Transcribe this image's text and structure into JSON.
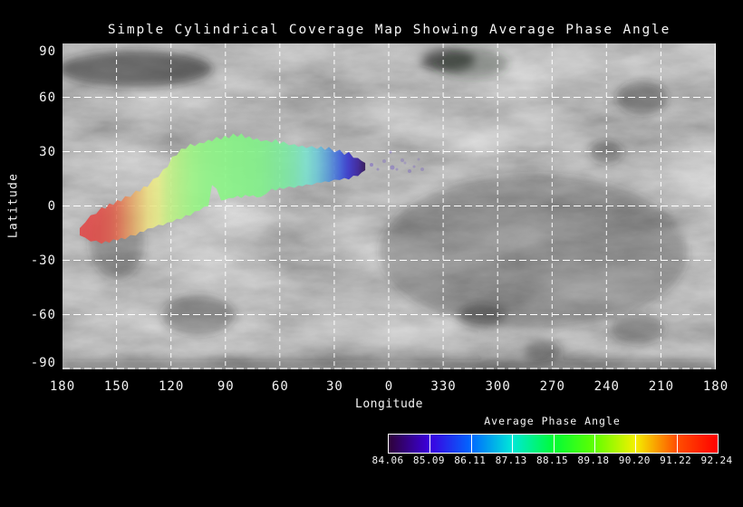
{
  "title": "Simple Cylindrical Coverage Map Showing Average Phase Angle",
  "axes": {
    "xlabel": "Longitude",
    "ylabel": "Latitude",
    "x_tick_labels": [
      "180",
      "150",
      "120",
      "90",
      "60",
      "30",
      "0",
      "330",
      "300",
      "270",
      "240",
      "210",
      "180"
    ],
    "y_tick_labels": [
      "90",
      "60",
      "30",
      "0",
      "-30",
      "-60",
      "-90"
    ]
  },
  "colorbar": {
    "title": "Average Phase Angle",
    "tick_labels": [
      "84.06",
      "85.09",
      "86.11",
      "87.13",
      "88.15",
      "89.18",
      "90.20",
      "91.22",
      "92.24"
    ],
    "boundary_colors": [
      "#2e0238",
      "#3c00e0",
      "#0068ff",
      "#00e8d8",
      "#00fc38",
      "#60ff00",
      "#f4f000",
      "#ff5000",
      "#ff0000"
    ]
  },
  "chart_data": {
    "type": "heatmap",
    "subtype": "map-coverage-swath",
    "title": "Simple Cylindrical Coverage Map Showing Average Phase Angle",
    "xlabel": "Longitude",
    "ylabel": "Latitude",
    "x_ticks": [
      180,
      150,
      120,
      90,
      60,
      30,
      0,
      330,
      300,
      270,
      240,
      210,
      180
    ],
    "x_axis_note": "longitude decreases left-to-right from 180 through 0 and wraps to 180",
    "ylim": [
      -90,
      90
    ],
    "grid": "white dashed lines every 30 degrees",
    "value_name": "Average Phase Angle",
    "value_range": [
      84.06,
      92.24
    ],
    "legend_position": "colorbar bottom-right",
    "background": "grayscale simple-cylindrical basemap",
    "swath_station_columns": [
      "lon",
      "lat_top",
      "lat_bot",
      "avg_phase_angle"
    ],
    "swath_stations": [
      [
        170.5,
        -12,
        -16,
        92.2
      ],
      [
        164.5,
        -6.5,
        -18,
        92.0
      ],
      [
        158.5,
        -2.5,
        -19.5,
        91.7
      ],
      [
        152.0,
        0.5,
        -18,
        91.3
      ],
      [
        145.5,
        3.5,
        -16.5,
        90.9
      ],
      [
        139.6,
        6.5,
        -14.5,
        90.6
      ],
      [
        133.1,
        10.5,
        -12,
        90.3
      ],
      [
        127.1,
        16,
        -10,
        90.1
      ],
      [
        122.1,
        21.5,
        -8.5,
        89.8
      ],
      [
        117.1,
        28,
        -6.5,
        89.6
      ],
      [
        112.1,
        31.5,
        -4.5,
        89.4
      ],
      [
        107.1,
        33,
        -2.5,
        89.2
      ],
      [
        102.1,
        34.5,
        0,
        89.0
      ],
      [
        99.6,
        35,
        1,
        88.9
      ],
      [
        97.6,
        35.5,
        12,
        88.85
      ],
      [
        95.1,
        36,
        10.5,
        88.8
      ],
      [
        92.6,
        36.5,
        3.5,
        88.75
      ],
      [
        90.6,
        37,
        4.5,
        88.7
      ],
      [
        83.6,
        38,
        6,
        88.5
      ],
      [
        77.1,
        37,
        7,
        88.3
      ],
      [
        70.7,
        35.5,
        5.5,
        88.1
      ],
      [
        64.7,
        35,
        10,
        87.9
      ],
      [
        58.2,
        34,
        11,
        87.7
      ],
      [
        52.2,
        33,
        11.5,
        87.5
      ],
      [
        45.7,
        32,
        12.5,
        87.2
      ],
      [
        39.7,
        31.5,
        13.5,
        86.9
      ],
      [
        33.2,
        30.5,
        14.5,
        86.5
      ],
      [
        27.2,
        29,
        15.5,
        86.0
      ],
      [
        22.2,
        27.5,
        16.5,
        85.4
      ],
      [
        17.2,
        26,
        18,
        84.8
      ],
      [
        13.2,
        24,
        20,
        84.3
      ]
    ],
    "outlier_speck_columns": [
      "x_px",
      "y_px",
      "r_px",
      "opacity"
    ],
    "outlier_specks": [
      [
        341,
        134,
        2,
        0.45
      ],
      [
        348,
        139,
        1.5,
        0.35
      ],
      [
        355,
        130,
        2,
        0.3
      ],
      [
        362,
        120,
        1.5,
        0.35
      ],
      [
        364,
        137,
        2.5,
        0.4
      ],
      [
        369,
        139,
        1.5,
        0.3
      ],
      [
        375,
        129,
        2,
        0.3
      ],
      [
        378,
        132,
        1.5,
        0.25
      ],
      [
        383,
        141,
        2,
        0.35
      ],
      [
        388,
        136,
        1.5,
        0.3
      ],
      [
        393,
        128,
        1.5,
        0.25
      ],
      [
        397,
        139,
        2,
        0.3
      ]
    ],
    "speck_color": "#6a50c8"
  }
}
